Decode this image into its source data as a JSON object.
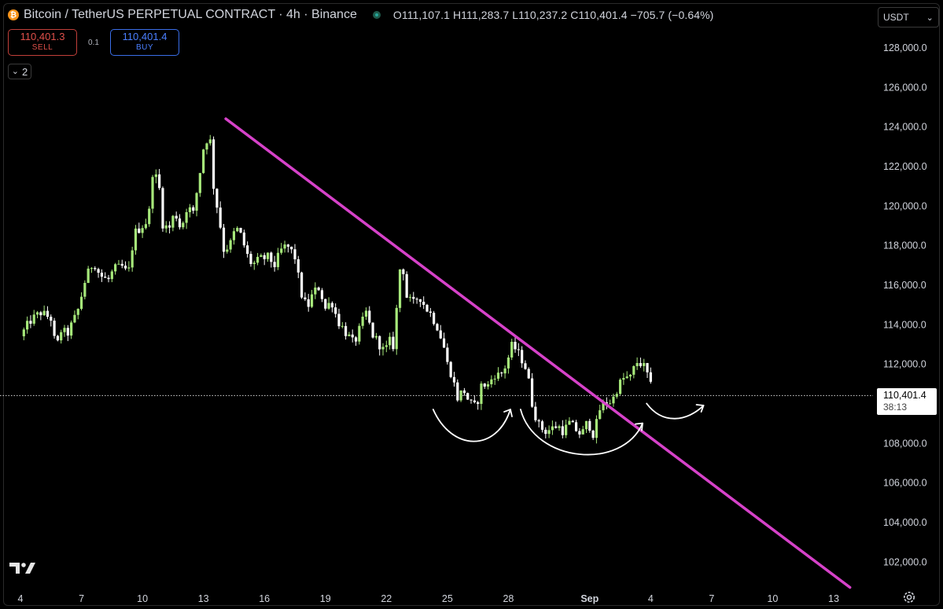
{
  "header": {
    "symbol_title": "Bitcoin / TetherUS PERPETUAL CONTRACT · 4h · Binance",
    "ohlc": "O111,107.1  H111,283.7  L110,237.2  C110,401.4  −705.7 (−0.64%)",
    "btc_icon": "bitcoin-icon",
    "btc_glyph": "₿"
  },
  "trade": {
    "sell_price": "110,401.3",
    "sell_label": "SELL",
    "spread": "0.1",
    "buy_price": "110,401.4",
    "buy_label": "BUY"
  },
  "indicators_toggle": {
    "chevron": "⌄",
    "count": "2"
  },
  "currency": {
    "label": "USDT",
    "chevron": "⌄"
  },
  "last_price": {
    "value": "110,401.4",
    "countdown": "38:13"
  },
  "colors": {
    "up": "#a6e87a",
    "down": "#ffffff",
    "trendline": "#d642c9",
    "annotation": "#ffffff"
  },
  "chart_data": {
    "type": "candlestick",
    "timeframe": "4h",
    "ylim": [
      100500,
      129500
    ],
    "y_ticks": [
      "102,000.0",
      "104,000.0",
      "106,000.0",
      "108,000.0",
      "110,000.0",
      "112,000.0",
      "114,000.0",
      "116,000.0",
      "118,000.0",
      "120,000.0",
      "122,000.0",
      "124,000.0",
      "126,000.0",
      "128,000.0"
    ],
    "x_ticks": [
      "4",
      "7",
      "10",
      "13",
      "16",
      "19",
      "22",
      "25",
      "28",
      "Sep",
      "4",
      "7",
      "10",
      "13"
    ],
    "x_tick_days": [
      0,
      3,
      6,
      9,
      12,
      15,
      18,
      21,
      24,
      28,
      31,
      34,
      37,
      40
    ],
    "close_path": [
      [
        0,
        113400
      ],
      [
        0.5,
        114200
      ],
      [
        1,
        114600
      ],
      [
        1.5,
        114300
      ],
      [
        1.6,
        113400
      ],
      [
        1.8,
        112900
      ],
      [
        2.0,
        113700
      ],
      [
        2.3,
        113500
      ],
      [
        2.8,
        114600
      ],
      [
        3.2,
        116300
      ],
      [
        3.6,
        117200
      ],
      [
        3.9,
        116500
      ],
      [
        4.3,
        116200
      ],
      [
        4.6,
        116800
      ],
      [
        5.0,
        116900
      ],
      [
        5.3,
        116500
      ],
      [
        5.6,
        118600
      ],
      [
        6.0,
        119000
      ],
      [
        6.3,
        119300
      ],
      [
        6.5,
        121700
      ],
      [
        6.8,
        121200
      ],
      [
        7.0,
        119100
      ],
      [
        7.3,
        118800
      ],
      [
        7.6,
        119700
      ],
      [
        7.9,
        118800
      ],
      [
        8.2,
        120000
      ],
      [
        8.5,
        119600
      ],
      [
        8.8,
        121500
      ],
      [
        9.0,
        122900
      ],
      [
        9.3,
        123700
      ],
      [
        9.5,
        121000
      ],
      [
        9.8,
        119200
      ],
      [
        10.0,
        117800
      ],
      [
        10.3,
        118000
      ],
      [
        10.6,
        118900
      ],
      [
        10.9,
        118400
      ],
      [
        11.1,
        117600
      ],
      [
        11.4,
        117000
      ],
      [
        11.8,
        117300
      ],
      [
        12.2,
        117400
      ],
      [
        12.5,
        117000
      ],
      [
        12.9,
        117900
      ],
      [
        13.2,
        117900
      ],
      [
        13.5,
        117400
      ],
      [
        13.8,
        115600
      ],
      [
        14.1,
        114800
      ],
      [
        14.4,
        115600
      ],
      [
        14.7,
        115900
      ],
      [
        15.0,
        114800
      ],
      [
        15.3,
        115200
      ],
      [
        15.6,
        114200
      ],
      [
        16.0,
        113600
      ],
      [
        16.4,
        113000
      ],
      [
        16.7,
        113800
      ],
      [
        17.0,
        114600
      ],
      [
        17.3,
        113500
      ],
      [
        17.6,
        113100
      ],
      [
        17.9,
        112600
      ],
      [
        18.2,
        113200
      ],
      [
        18.4,
        112800
      ],
      [
        18.6,
        116700
      ],
      [
        18.8,
        117000
      ],
      [
        19.0,
        115400
      ],
      [
        19.3,
        115000
      ],
      [
        19.6,
        115500
      ],
      [
        19.9,
        114900
      ],
      [
        20.2,
        114500
      ],
      [
        20.5,
        113900
      ],
      [
        20.8,
        113000
      ],
      [
        21.0,
        112000
      ],
      [
        21.2,
        111500
      ],
      [
        21.5,
        110300
      ],
      [
        21.8,
        110700
      ],
      [
        22.1,
        110000
      ],
      [
        22.4,
        109800
      ],
      [
        22.7,
        111000
      ],
      [
        23.0,
        110900
      ],
      [
        23.3,
        111500
      ],
      [
        23.6,
        111400
      ],
      [
        23.9,
        112000
      ],
      [
        24.2,
        113000
      ],
      [
        24.5,
        112500
      ],
      [
        24.8,
        112000
      ],
      [
        25.0,
        111100
      ],
      [
        25.2,
        109800
      ],
      [
        25.5,
        108900
      ],
      [
        25.8,
        108600
      ],
      [
        26.1,
        108700
      ],
      [
        26.4,
        108900
      ],
      [
        26.7,
        108600
      ],
      [
        27.0,
        109000
      ],
      [
        27.3,
        108700
      ],
      [
        27.6,
        108400
      ],
      [
        27.9,
        109100
      ],
      [
        28.2,
        108400
      ],
      [
        28.5,
        109700
      ],
      [
        28.8,
        110100
      ],
      [
        29.1,
        110100
      ],
      [
        29.4,
        110900
      ],
      [
        29.7,
        111300
      ],
      [
        30.0,
        111300
      ],
      [
        30.3,
        112100
      ],
      [
        30.6,
        112000
      ],
      [
        30.9,
        111300
      ],
      [
        31.1,
        110400
      ]
    ]
  },
  "annotations": {
    "trendline": {
      "from": [
        "Aug 14",
        124400
      ],
      "to": [
        "Sep 14",
        100700
      ]
    },
    "arcs": [
      "left shoulder cup",
      "right cup",
      "projected move up"
    ]
  },
  "logo_icon": "tradingview-logo-icon",
  "settings_icon": "gear-icon"
}
